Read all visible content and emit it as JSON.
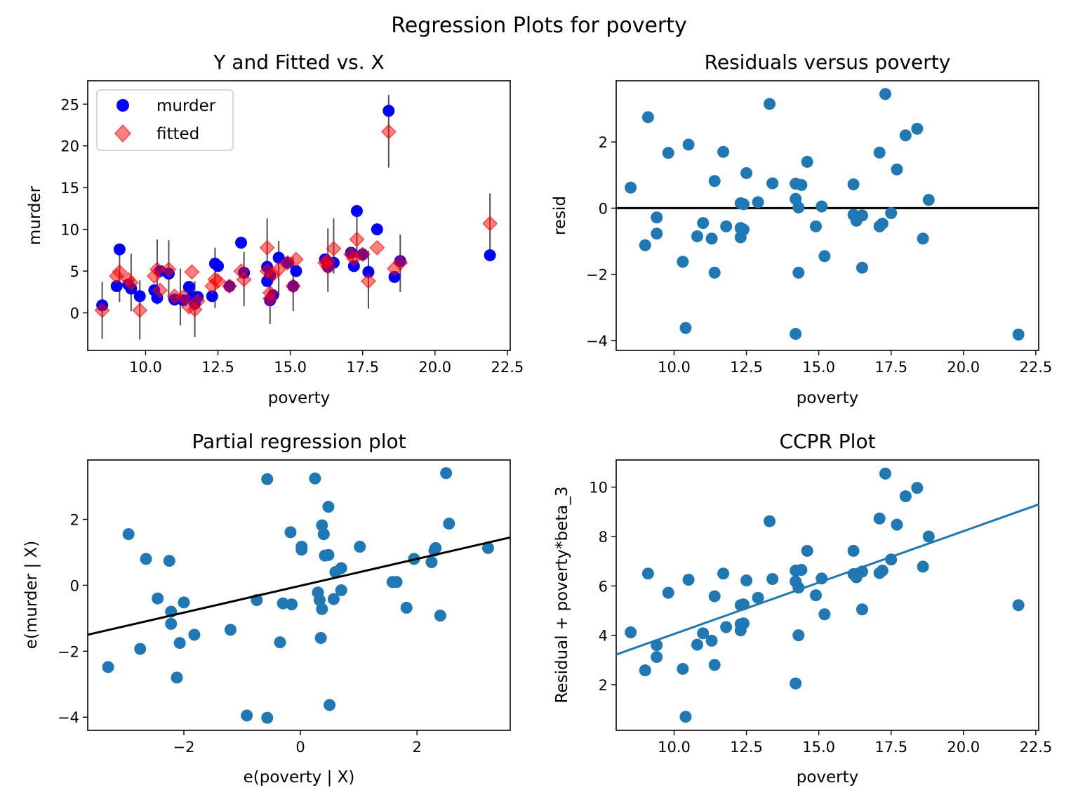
{
  "suptitle": "Regression Plots for poverty",
  "colors": {
    "observed": "#0000ff",
    "fitted": "#ff0000",
    "scatter": "#1f77b4",
    "fit_line_black": "#000000",
    "fit_line_blue": "#1f77b4",
    "ci_line": "#333333"
  },
  "chart_data": [
    {
      "id": "yfit",
      "type": "scatter",
      "title": "Y and Fitted vs. X",
      "xlabel": "poverty",
      "ylabel": "murder",
      "xlim": [
        8.0,
        22.6
      ],
      "ylim": [
        -4.5,
        27.8
      ],
      "xticks": [
        10.0,
        12.5,
        15.0,
        17.5,
        20.0,
        22.5
      ],
      "xtick_labels": [
        "10.0",
        "12.5",
        "15.0",
        "17.5",
        "20.0",
        "22.5"
      ],
      "yticks": [
        0,
        5,
        10,
        15,
        20,
        25
      ],
      "ytick_labels": [
        "0",
        "5",
        "10",
        "15",
        "20",
        "25"
      ],
      "legend": [
        "murder",
        "fitted"
      ],
      "legend_position": "top-left",
      "series": [
        {
          "name": "murder",
          "marker": "circle",
          "color": "#0000ff",
          "points": [
            [
              8.5,
              0.9
            ],
            [
              9.0,
              3.2
            ],
            [
              9.1,
              7.6
            ],
            [
              9.4,
              3.4
            ],
            [
              9.5,
              2.9
            ],
            [
              9.8,
              2.0
            ],
            [
              10.3,
              2.7
            ],
            [
              10.4,
              1.8
            ],
            [
              10.5,
              5.0
            ],
            [
              10.8,
              4.7
            ],
            [
              11.0,
              1.6
            ],
            [
              11.3,
              1.5
            ],
            [
              11.5,
              3.1
            ],
            [
              11.6,
              1.9
            ],
            [
              11.7,
              1.1
            ],
            [
              11.8,
              1.9
            ],
            [
              12.3,
              2.0
            ],
            [
              12.4,
              5.9
            ],
            [
              12.5,
              5.6
            ],
            [
              12.9,
              3.2
            ],
            [
              13.3,
              8.4
            ],
            [
              13.4,
              4.8
            ],
            [
              14.2,
              5.5
            ],
            [
              14.2,
              3.8
            ],
            [
              14.3,
              4.5
            ],
            [
              14.3,
              1.5
            ],
            [
              14.4,
              2.1
            ],
            [
              14.6,
              6.6
            ],
            [
              14.9,
              6.0
            ],
            [
              15.1,
              3.2
            ],
            [
              15.2,
              5.0
            ],
            [
              16.2,
              6.4
            ],
            [
              16.3,
              5.5
            ],
            [
              16.3,
              5.8
            ],
            [
              16.5,
              6.0
            ],
            [
              17.1,
              7.2
            ],
            [
              17.2,
              5.6
            ],
            [
              17.3,
              12.2
            ],
            [
              17.5,
              7.0
            ],
            [
              17.7,
              4.9
            ],
            [
              18.0,
              10.0
            ],
            [
              18.4,
              24.2
            ],
            [
              18.6,
              4.3
            ],
            [
              18.8,
              6.2
            ],
            [
              21.9,
              6.9
            ]
          ]
        },
        {
          "name": "fitted",
          "marker": "diamond",
          "color": "#ff0000",
          "points": [
            [
              8.5,
              0.3
            ],
            [
              9.0,
              4.4
            ],
            [
              9.1,
              4.9
            ],
            [
              9.4,
              4.0
            ],
            [
              9.5,
              3.6
            ],
            [
              9.8,
              0.3
            ],
            [
              10.3,
              4.4
            ],
            [
              10.4,
              5.2
            ],
            [
              10.5,
              2.7
            ],
            [
              10.8,
              5.2
            ],
            [
              11.0,
              2.0
            ],
            [
              11.3,
              1.9
            ],
            [
              11.5,
              0.7
            ],
            [
              11.6,
              4.9
            ],
            [
              11.7,
              0.4
            ],
            [
              11.8,
              1.4
            ],
            [
              12.3,
              3.2
            ],
            [
              12.4,
              4.0
            ],
            [
              12.5,
              3.8
            ],
            [
              12.9,
              3.2
            ],
            [
              13.3,
              5.0
            ],
            [
              13.4,
              4.0
            ],
            [
              14.2,
              7.8
            ],
            [
              14.2,
              5.0
            ],
            [
              14.3,
              1.7
            ],
            [
              14.3,
              2.4
            ],
            [
              14.4,
              4.6
            ],
            [
              14.6,
              5.2
            ],
            [
              14.9,
              6.0
            ],
            [
              15.1,
              3.2
            ],
            [
              15.2,
              6.4
            ],
            [
              16.2,
              6.0
            ],
            [
              16.3,
              5.5
            ],
            [
              16.3,
              6.2
            ],
            [
              16.5,
              7.7
            ],
            [
              17.1,
              7.0
            ],
            [
              17.2,
              6.5
            ],
            [
              17.3,
              8.8
            ],
            [
              17.5,
              7.0
            ],
            [
              17.7,
              3.8
            ],
            [
              18.0,
              7.8
            ],
            [
              18.4,
              21.7
            ],
            [
              18.6,
              5.3
            ],
            [
              18.8,
              6.0
            ],
            [
              21.9,
              10.7
            ]
          ]
        }
      ],
      "ci_ranges": [
        [
          8.5,
          -3.1,
          3.7
        ],
        [
          9.1,
          1.3,
          8.3
        ],
        [
          9.5,
          0.2,
          7.1
        ],
        [
          9.8,
          -3.2,
          3.9
        ],
        [
          10.4,
          1.0,
          8.8
        ],
        [
          10.8,
          1.5,
          8.7
        ],
        [
          11.2,
          -1.5,
          5.3
        ],
        [
          11.7,
          -2.9,
          3.8
        ],
        [
          12.4,
          0.6,
          7.8
        ],
        [
          13.4,
          0.8,
          7.3
        ],
        [
          14.2,
          4.1,
          11.3
        ],
        [
          14.3,
          -1.3,
          4.5
        ],
        [
          14.6,
          2.1,
          8.6
        ],
        [
          15.1,
          0.2,
          6.7
        ],
        [
          16.3,
          2.5,
          10.1
        ],
        [
          16.5,
          4.7,
          11.3
        ],
        [
          17.3,
          5.4,
          12.5
        ],
        [
          17.7,
          0.5,
          7.4
        ],
        [
          18.4,
          17.4,
          26.1
        ],
        [
          18.8,
          2.5,
          9.4
        ],
        [
          21.9,
          7.1,
          14.3
        ]
      ]
    },
    {
      "id": "resid",
      "type": "scatter",
      "title": "Residuals versus poverty",
      "xlabel": "poverty",
      "ylabel": "resid",
      "xlim": [
        8.0,
        22.6
      ],
      "ylim": [
        -4.3,
        3.85
      ],
      "xticks": [
        10.0,
        12.5,
        15.0,
        17.5,
        20.0,
        22.5
      ],
      "xtick_labels": [
        "10.0",
        "12.5",
        "15.0",
        "17.5",
        "20.0",
        "22.5"
      ],
      "yticks": [
        -4,
        -2,
        0,
        2
      ],
      "ytick_labels": [
        "−4",
        "−2",
        "0",
        "2"
      ],
      "hline": 0,
      "points": [
        [
          8.5,
          0.62
        ],
        [
          9.0,
          -1.12
        ],
        [
          9.1,
          2.75
        ],
        [
          9.4,
          -0.28
        ],
        [
          9.4,
          -0.77
        ],
        [
          9.8,
          1.67
        ],
        [
          10.3,
          -1.62
        ],
        [
          10.4,
          -3.62
        ],
        [
          10.5,
          1.92
        ],
        [
          10.8,
          -0.85
        ],
        [
          11.0,
          -0.45
        ],
        [
          11.3,
          -0.92
        ],
        [
          11.4,
          0.82
        ],
        [
          11.4,
          -1.95
        ],
        [
          11.7,
          1.7
        ],
        [
          11.8,
          -0.55
        ],
        [
          12.3,
          0.15
        ],
        [
          12.3,
          -0.6
        ],
        [
          12.3,
          -0.88
        ],
        [
          12.4,
          0.12
        ],
        [
          12.4,
          -0.65
        ],
        [
          12.5,
          1.06
        ],
        [
          12.9,
          0.18
        ],
        [
          13.3,
          3.15
        ],
        [
          13.4,
          0.75
        ],
        [
          14.2,
          0.74
        ],
        [
          14.2,
          0.28
        ],
        [
          14.2,
          -3.8
        ],
        [
          14.3,
          0.02
        ],
        [
          14.3,
          -1.95
        ],
        [
          14.4,
          0.7
        ],
        [
          14.6,
          1.4
        ],
        [
          14.9,
          -0.55
        ],
        [
          15.1,
          0.05
        ],
        [
          15.2,
          -1.45
        ],
        [
          16.2,
          0.72
        ],
        [
          16.2,
          -0.2
        ],
        [
          16.3,
          -0.38
        ],
        [
          16.3,
          -0.3
        ],
        [
          16.5,
          -1.8
        ],
        [
          16.5,
          -0.22
        ],
        [
          17.1,
          1.68
        ],
        [
          17.1,
          -0.55
        ],
        [
          17.2,
          -0.47
        ],
        [
          17.3,
          3.45
        ],
        [
          17.5,
          -0.15
        ],
        [
          17.7,
          1.17
        ],
        [
          18.0,
          2.2
        ],
        [
          18.4,
          2.4
        ],
        [
          18.6,
          -0.92
        ],
        [
          18.8,
          0.25
        ],
        [
          21.9,
          -3.82
        ]
      ]
    },
    {
      "id": "partreg",
      "type": "scatter",
      "title": "Partial regression plot",
      "xlabel": "e(poverty | X)",
      "ylabel": "e(murder | X)",
      "xlim": [
        -3.65,
        3.6
      ],
      "ylim": [
        -4.4,
        3.8
      ],
      "xticks": [
        -2,
        0,
        2
      ],
      "xtick_labels": [
        "−2",
        "0",
        "2"
      ],
      "yticks": [
        -4,
        -2,
        0,
        2
      ],
      "ytick_labels": [
        "−4",
        "−2",
        "0",
        "2"
      ],
      "fit_line": [
        [
          -3.65,
          -1.5
        ],
        [
          3.6,
          1.45
        ]
      ],
      "points": [
        [
          -3.3,
          -2.48
        ],
        [
          -2.95,
          1.55
        ],
        [
          -2.75,
          -1.93
        ],
        [
          -2.65,
          0.8
        ],
        [
          -2.45,
          -0.4
        ],
        [
          -2.25,
          0.74
        ],
        [
          -2.22,
          -0.8
        ],
        [
          -2.22,
          -1.17
        ],
        [
          -2.12,
          -2.8
        ],
        [
          -2.07,
          -1.75
        ],
        [
          -2.0,
          -0.52
        ],
        [
          -1.82,
          -1.5
        ],
        [
          -1.2,
          -1.35
        ],
        [
          -0.92,
          -3.95
        ],
        [
          -0.75,
          -0.45
        ],
        [
          -0.57,
          3.22
        ],
        [
          -0.57,
          -4.02
        ],
        [
          -0.35,
          -1.73
        ],
        [
          -0.3,
          -0.55
        ],
        [
          -0.17,
          1.61
        ],
        [
          -0.15,
          -0.58
        ],
        [
          0.02,
          1.17
        ],
        [
          0.02,
          1.08
        ],
        [
          0.25,
          3.24
        ],
        [
          0.3,
          -0.22
        ],
        [
          0.33,
          -0.45
        ],
        [
          0.35,
          -1.6
        ],
        [
          0.37,
          1.82
        ],
        [
          0.37,
          -0.72
        ],
        [
          0.4,
          1.55
        ],
        [
          0.42,
          0.9
        ],
        [
          0.48,
          0.92
        ],
        [
          0.48,
          2.38
        ],
        [
          0.5,
          -3.63
        ],
        [
          0.57,
          -0.42
        ],
        [
          0.6,
          0.4
        ],
        [
          0.7,
          -0.15
        ],
        [
          0.7,
          0.52
        ],
        [
          1.02,
          1.17
        ],
        [
          1.58,
          0.1
        ],
        [
          1.65,
          0.1
        ],
        [
          1.82,
          -0.68
        ],
        [
          1.95,
          0.8
        ],
        [
          2.25,
          0.7
        ],
        [
          2.3,
          1.05
        ],
        [
          2.32,
          1.13
        ],
        [
          2.4,
          -0.92
        ],
        [
          2.5,
          3.4
        ],
        [
          2.55,
          1.87
        ],
        [
          3.22,
          1.13
        ]
      ]
    },
    {
      "id": "ccpr",
      "type": "scatter",
      "title": "CCPR Plot",
      "xlabel": "poverty",
      "ylabel": "Residual + poverty*beta_3",
      "xlim": [
        8.0,
        22.6
      ],
      "ylim": [
        0.15,
        11.1
      ],
      "xticks": [
        10.0,
        12.5,
        15.0,
        17.5,
        20.0,
        22.5
      ],
      "xtick_labels": [
        "10.0",
        "12.5",
        "15.0",
        "17.5",
        "20.0",
        "22.5"
      ],
      "yticks": [
        2,
        4,
        6,
        8,
        10
      ],
      "ytick_labels": [
        "2",
        "4",
        "6",
        "8",
        "10"
      ],
      "fit_line": [
        [
          8.0,
          3.22
        ],
        [
          22.6,
          9.3
        ]
      ],
      "points": [
        [
          8.5,
          4.12
        ],
        [
          9.0,
          2.58
        ],
        [
          9.1,
          6.5
        ],
        [
          9.4,
          3.6
        ],
        [
          9.4,
          3.12
        ],
        [
          9.8,
          5.72
        ],
        [
          10.3,
          2.64
        ],
        [
          10.4,
          0.7
        ],
        [
          10.5,
          6.25
        ],
        [
          10.8,
          3.62
        ],
        [
          11.0,
          4.08
        ],
        [
          11.3,
          3.78
        ],
        [
          11.4,
          5.58
        ],
        [
          11.4,
          2.8
        ],
        [
          11.7,
          6.5
        ],
        [
          11.8,
          4.33
        ],
        [
          12.3,
          5.22
        ],
        [
          12.3,
          4.45
        ],
        [
          12.3,
          4.2
        ],
        [
          12.4,
          5.25
        ],
        [
          12.4,
          4.48
        ],
        [
          12.5,
          6.22
        ],
        [
          12.9,
          5.52
        ],
        [
          13.3,
          8.62
        ],
        [
          13.4,
          6.28
        ],
        [
          14.2,
          6.62
        ],
        [
          14.2,
          6.18
        ],
        [
          14.2,
          2.05
        ],
        [
          14.3,
          5.93
        ],
        [
          14.3,
          4.0
        ],
        [
          14.4,
          6.65
        ],
        [
          14.6,
          7.42
        ],
        [
          14.9,
          5.62
        ],
        [
          15.1,
          6.3
        ],
        [
          15.2,
          4.85
        ],
        [
          16.2,
          7.42
        ],
        [
          16.2,
          6.48
        ],
        [
          16.3,
          6.35
        ],
        [
          16.3,
          6.42
        ],
        [
          16.5,
          5.05
        ],
        [
          16.5,
          6.58
        ],
        [
          17.1,
          8.73
        ],
        [
          17.1,
          6.52
        ],
        [
          17.2,
          6.62
        ],
        [
          17.3,
          10.55
        ],
        [
          17.5,
          7.07
        ],
        [
          17.7,
          8.48
        ],
        [
          18.0,
          9.63
        ],
        [
          18.4,
          9.97
        ],
        [
          18.6,
          6.78
        ],
        [
          18.8,
          8.0
        ],
        [
          21.9,
          5.22
        ]
      ]
    }
  ]
}
